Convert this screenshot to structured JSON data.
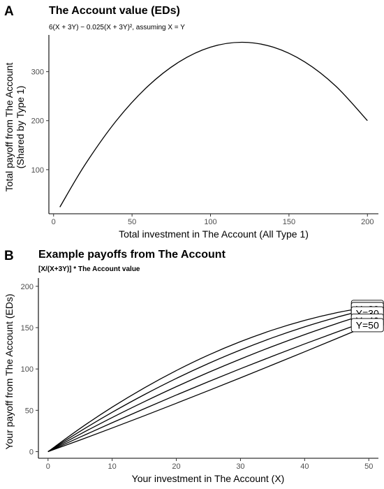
{
  "chart_data": [
    {
      "panel": "A",
      "type": "line",
      "title": "The Account value (EDs)",
      "subtitle": "6(X + 3Y) − 0.025(X + 3Y)², assuming X = Y",
      "xlabel": "Total investment in The Account (All Type 1)",
      "ylabel": [
        "Total payoff from The Account",
        "(Shared by Type 1)"
      ],
      "xlim": [
        -3,
        207
      ],
      "ylim": [
        10,
        375
      ],
      "xticks": [
        0,
        50,
        100,
        150,
        200
      ],
      "yticks": [
        100,
        200,
        300
      ],
      "grid": false,
      "series": [
        {
          "x": [
            4,
            20,
            40,
            60,
            80,
            100,
            120,
            140,
            160,
            180,
            200
          ],
          "y": [
            23.6,
            110,
            200,
            270,
            320,
            350,
            360,
            350,
            320,
            270,
            200
          ]
        }
      ]
    },
    {
      "panel": "B",
      "type": "line",
      "title": "Example payoffs from The Account",
      "subtitle": "[X/(X+3Y)] * The Account value",
      "xlabel": "Your investment in The Account (X)",
      "ylabel": [
        "Your payoff from The Account (EDs)"
      ],
      "xlim": [
        -1.5,
        51.5
      ],
      "ylim": [
        -8,
        210
      ],
      "xticks": [
        0,
        10,
        20,
        30,
        40,
        50
      ],
      "yticks": [
        0,
        50,
        100,
        150,
        200
      ],
      "grid": false,
      "x": [
        0,
        5,
        10,
        15,
        20,
        25,
        30,
        35,
        40,
        45,
        50
      ],
      "series": [
        {
          "name": "Y=10",
          "y": [
            0,
            28.1,
            53.8,
            77.1,
            98.1,
            116.8,
            133.1,
            147.1,
            158.8,
            168.1,
            175.1
          ]
        },
        {
          "name": "Y=20",
          "y": [
            0,
            24.6,
            47.6,
            68.9,
            88.6,
            106.6,
            123.0,
            137.8,
            151.0,
            162.5,
            172.5
          ]
        },
        {
          "name": "Y=30",
          "y": [
            0,
            21.1,
            41.3,
            60.4,
            78.6,
            95.8,
            112.0,
            127.3,
            141.6,
            154.9,
            167.3
          ]
        },
        {
          "name": "Y=40",
          "y": [
            0,
            17.6,
            35.0,
            51.9,
            68.5,
            84.6,
            100.3,
            115.5,
            130.3,
            144.6,
            158.5
          ]
        },
        {
          "name": "Y=50",
          "y": [
            0,
            14.1,
            28.6,
            43.4,
            58.5,
            73.8,
            89.3,
            105.0,
            120.8,
            136.8,
            153.0
          ]
        }
      ]
    }
  ]
}
